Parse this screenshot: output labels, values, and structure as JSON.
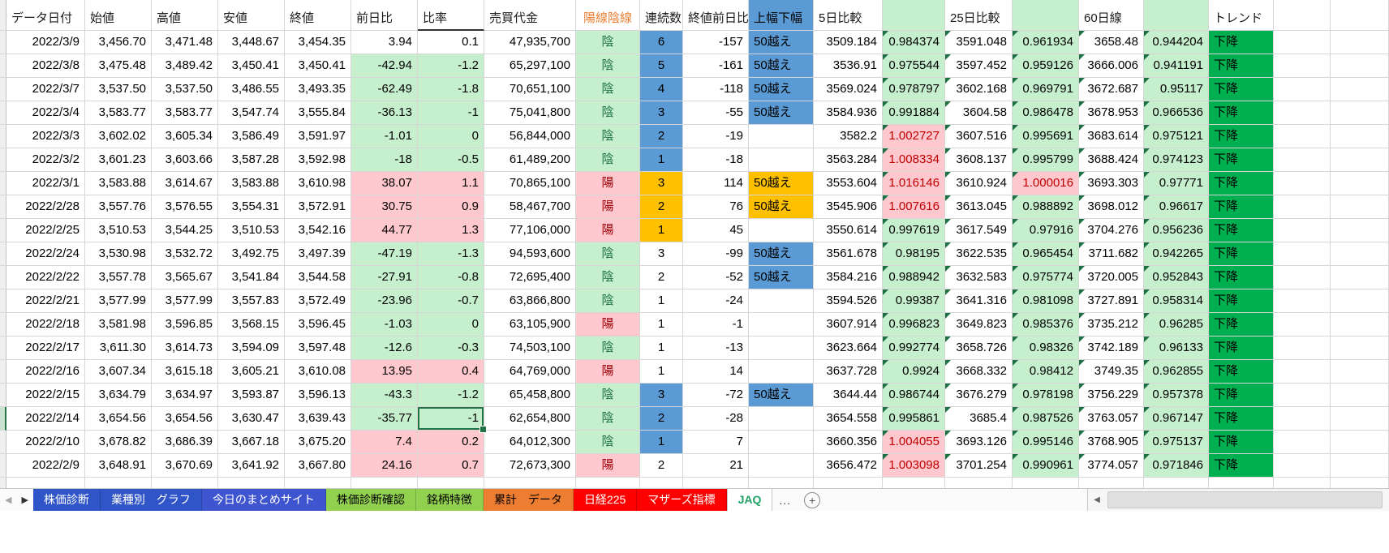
{
  "table": {
    "columns": [
      {
        "key": "gutter",
        "label": ""
      },
      {
        "key": "date",
        "label": "データ日付"
      },
      {
        "key": "open",
        "label": "始値"
      },
      {
        "key": "high",
        "label": "高値"
      },
      {
        "key": "low",
        "label": "安値"
      },
      {
        "key": "close",
        "label": "終値"
      },
      {
        "key": "diff",
        "label": "前日比"
      },
      {
        "key": "ratio",
        "label": "比率",
        "hclass": "hdr-ratio"
      },
      {
        "key": "volume",
        "label": "売買代金"
      },
      {
        "key": "candle",
        "label": "陽線陰線",
        "hclass": "hdr-orange"
      },
      {
        "key": "streak",
        "label": "連続数"
      },
      {
        "key": "closediff",
        "label": "終値前日比"
      },
      {
        "key": "range",
        "label": "上幅下幅",
        "hclass": "hdr-blue"
      },
      {
        "key": "d5",
        "label": "5日比較"
      },
      {
        "key": "d5r",
        "label": "",
        "hclass": "hdr-green",
        "tri": true
      },
      {
        "key": "d25",
        "label": "25日比較",
        "tri": true
      },
      {
        "key": "d25r",
        "label": "",
        "hclass": "hdr-green",
        "tri": true
      },
      {
        "key": "d60",
        "label": "60日線",
        "tri": true
      },
      {
        "key": "d60r",
        "label": "",
        "hclass": "hdr-green",
        "tri": true
      },
      {
        "key": "trend",
        "label": "トレンド"
      },
      {
        "key": "filler1",
        "label": ""
      },
      {
        "key": "filler2",
        "label": ""
      }
    ],
    "selection": {
      "row": 16,
      "col": "ratio"
    },
    "rows": [
      {
        "date": "2022/3/9",
        "open": "3,456.70",
        "high": "3,471.48",
        "low": "3,448.67",
        "close": "3,454.35",
        "diff": "3.94",
        "ratio": "0.1",
        "volume": "47,935,700",
        "candle": "陰",
        "streak": "6",
        "closediff": "-157",
        "range": "50越え",
        "d5": "3509.184",
        "d5r": "0.984374",
        "d25": "3591.048",
        "d25r": "0.961934",
        "d60": "3658.48",
        "d60r": "0.944204",
        "trend": "下降",
        "diff_fill": "none",
        "streak_fill": "blue",
        "range_fill": "blue"
      },
      {
        "date": "2022/3/8",
        "open": "3,475.48",
        "high": "3,489.42",
        "low": "3,450.41",
        "close": "3,450.41",
        "diff": "-42.94",
        "ratio": "-1.2",
        "volume": "65,297,100",
        "candle": "陰",
        "streak": "5",
        "closediff": "-161",
        "range": "50越え",
        "d5": "3536.91",
        "d5r": "0.975544",
        "d25": "3597.452",
        "d25r": "0.959126",
        "d60": "3666.006",
        "d60r": "0.941191",
        "trend": "下降",
        "diff_fill": "green",
        "streak_fill": "blue",
        "range_fill": "blue"
      },
      {
        "date": "2022/3/7",
        "open": "3,537.50",
        "high": "3,537.50",
        "low": "3,486.55",
        "close": "3,493.35",
        "diff": "-62.49",
        "ratio": "-1.8",
        "volume": "70,651,100",
        "candle": "陰",
        "streak": "4",
        "closediff": "-118",
        "range": "50越え",
        "d5": "3569.024",
        "d5r": "0.978797",
        "d25": "3602.168",
        "d25r": "0.969791",
        "d60": "3672.687",
        "d60r": "0.95117",
        "trend": "下降",
        "diff_fill": "green",
        "streak_fill": "blue",
        "range_fill": "blue"
      },
      {
        "date": "2022/3/4",
        "open": "3,583.77",
        "high": "3,583.77",
        "low": "3,547.74",
        "close": "3,555.84",
        "diff": "-36.13",
        "ratio": "-1",
        "volume": "75,041,800",
        "candle": "陰",
        "streak": "3",
        "closediff": "-55",
        "range": "50越え",
        "d5": "3584.936",
        "d5r": "0.991884",
        "d25": "3604.58",
        "d25r": "0.986478",
        "d60": "3678.953",
        "d60r": "0.966536",
        "trend": "下降",
        "diff_fill": "green",
        "streak_fill": "blue",
        "range_fill": "blue"
      },
      {
        "date": "2022/3/3",
        "open": "3,602.02",
        "high": "3,605.34",
        "low": "3,586.49",
        "close": "3,591.97",
        "diff": "-1.01",
        "ratio": "0",
        "volume": "56,844,000",
        "candle": "陰",
        "streak": "2",
        "closediff": "-19",
        "range": "",
        "d5": "3582.2",
        "d5r": "1.002727",
        "d25": "3607.516",
        "d25r": "0.995691",
        "d60": "3683.614",
        "d60r": "0.975121",
        "trend": "下降",
        "diff_fill": "green",
        "streak_fill": "blue",
        "range_fill": "none"
      },
      {
        "date": "2022/3/2",
        "open": "3,601.23",
        "high": "3,603.66",
        "low": "3,587.28",
        "close": "3,592.98",
        "diff": "-18",
        "ratio": "-0.5",
        "volume": "61,489,200",
        "candle": "陰",
        "streak": "1",
        "closediff": "-18",
        "range": "",
        "d5": "3563.284",
        "d5r": "1.008334",
        "d25": "3608.137",
        "d25r": "0.995799",
        "d60": "3688.424",
        "d60r": "0.974123",
        "trend": "下降",
        "diff_fill": "green",
        "streak_fill": "blue",
        "range_fill": "none"
      },
      {
        "date": "2022/3/1",
        "open": "3,583.88",
        "high": "3,614.67",
        "low": "3,583.88",
        "close": "3,610.98",
        "diff": "38.07",
        "ratio": "1.1",
        "volume": "70,865,100",
        "candle": "陽",
        "streak": "3",
        "closediff": "114",
        "range": "50越え",
        "d5": "3553.604",
        "d5r": "1.016146",
        "d25": "3610.924",
        "d25r": "1.000016",
        "d60": "3693.303",
        "d60r": "0.97771",
        "trend": "下降",
        "diff_fill": "pink",
        "streak_fill": "orange",
        "range_fill": "orange"
      },
      {
        "date": "2022/2/28",
        "open": "3,557.76",
        "high": "3,576.55",
        "low": "3,554.31",
        "close": "3,572.91",
        "diff": "30.75",
        "ratio": "0.9",
        "volume": "58,467,700",
        "candle": "陽",
        "streak": "2",
        "closediff": "76",
        "range": "50越え",
        "d5": "3545.906",
        "d5r": "1.007616",
        "d25": "3613.045",
        "d25r": "0.988892",
        "d60": "3698.012",
        "d60r": "0.96617",
        "trend": "下降",
        "diff_fill": "pink",
        "streak_fill": "orange",
        "range_fill": "orange"
      },
      {
        "date": "2022/2/25",
        "open": "3,510.53",
        "high": "3,544.25",
        "low": "3,510.53",
        "close": "3,542.16",
        "diff": "44.77",
        "ratio": "1.3",
        "volume": "77,106,000",
        "candle": "陽",
        "streak": "1",
        "closediff": "45",
        "range": "",
        "d5": "3550.614",
        "d5r": "0.997619",
        "d25": "3617.549",
        "d25r": "0.97916",
        "d60": "3704.276",
        "d60r": "0.956236",
        "trend": "下降",
        "diff_fill": "pink",
        "streak_fill": "orange",
        "range_fill": "none"
      },
      {
        "date": "2022/2/24",
        "open": "3,530.98",
        "high": "3,532.72",
        "low": "3,492.75",
        "close": "3,497.39",
        "diff": "-47.19",
        "ratio": "-1.3",
        "volume": "94,593,600",
        "candle": "陰",
        "streak": "3",
        "closediff": "-99",
        "range": "50越え",
        "d5": "3561.678",
        "d5r": "0.98195",
        "d25": "3622.535",
        "d25r": "0.965454",
        "d60": "3711.682",
        "d60r": "0.942265",
        "trend": "下降",
        "diff_fill": "green",
        "streak_fill": "none",
        "range_fill": "blue"
      },
      {
        "date": "2022/2/22",
        "open": "3,557.78",
        "high": "3,565.67",
        "low": "3,541.84",
        "close": "3,544.58",
        "diff": "-27.91",
        "ratio": "-0.8",
        "volume": "72,695,400",
        "candle": "陰",
        "streak": "2",
        "closediff": "-52",
        "range": "50越え",
        "d5": "3584.216",
        "d5r": "0.988942",
        "d25": "3632.583",
        "d25r": "0.975774",
        "d60": "3720.005",
        "d60r": "0.952843",
        "trend": "下降",
        "diff_fill": "green",
        "streak_fill": "none",
        "range_fill": "blue"
      },
      {
        "date": "2022/2/21",
        "open": "3,577.99",
        "high": "3,577.99",
        "low": "3,557.83",
        "close": "3,572.49",
        "diff": "-23.96",
        "ratio": "-0.7",
        "volume": "63,866,800",
        "candle": "陰",
        "streak": "1",
        "closediff": "-24",
        "range": "",
        "d5": "3594.526",
        "d5r": "0.99387",
        "d25": "3641.316",
        "d25r": "0.981098",
        "d60": "3727.891",
        "d60r": "0.958314",
        "trend": "下降",
        "diff_fill": "green",
        "streak_fill": "none",
        "range_fill": "none"
      },
      {
        "date": "2022/2/18",
        "open": "3,581.98",
        "high": "3,596.85",
        "low": "3,568.15",
        "close": "3,596.45",
        "diff": "-1.03",
        "ratio": "0",
        "volume": "63,105,900",
        "candle": "陽",
        "streak": "1",
        "closediff": "-1",
        "range": "",
        "d5": "3607.914",
        "d5r": "0.996823",
        "d25": "3649.823",
        "d25r": "0.985376",
        "d60": "3735.212",
        "d60r": "0.96285",
        "trend": "下降",
        "diff_fill": "green",
        "streak_fill": "none",
        "range_fill": "none"
      },
      {
        "date": "2022/2/17",
        "open": "3,611.30",
        "high": "3,614.73",
        "low": "3,594.09",
        "close": "3,597.48",
        "diff": "-12.6",
        "ratio": "-0.3",
        "volume": "74,503,100",
        "candle": "陰",
        "streak": "1",
        "closediff": "-13",
        "range": "",
        "d5": "3623.664",
        "d5r": "0.992774",
        "d25": "3658.726",
        "d25r": "0.98326",
        "d60": "3742.189",
        "d60r": "0.96133",
        "trend": "下降",
        "diff_fill": "green",
        "streak_fill": "none",
        "range_fill": "none"
      },
      {
        "date": "2022/2/16",
        "open": "3,607.34",
        "high": "3,615.18",
        "low": "3,605.21",
        "close": "3,610.08",
        "diff": "13.95",
        "ratio": "0.4",
        "volume": "64,769,000",
        "candle": "陽",
        "streak": "1",
        "closediff": "14",
        "range": "",
        "d5": "3637.728",
        "d5r": "0.9924",
        "d25": "3668.332",
        "d25r": "0.98412",
        "d60": "3749.35",
        "d60r": "0.962855",
        "trend": "下降",
        "diff_fill": "pink",
        "streak_fill": "none",
        "range_fill": "none"
      },
      {
        "date": "2022/2/15",
        "open": "3,634.79",
        "high": "3,634.97",
        "low": "3,593.87",
        "close": "3,596.13",
        "diff": "-43.3",
        "ratio": "-1.2",
        "volume": "65,458,800",
        "candle": "陰",
        "streak": "3",
        "closediff": "-72",
        "range": "50越え",
        "d5": "3644.44",
        "d5r": "0.986744",
        "d25": "3676.279",
        "d25r": "0.978198",
        "d60": "3756.229",
        "d60r": "0.957378",
        "trend": "下降",
        "diff_fill": "green",
        "streak_fill": "blue",
        "range_fill": "blue"
      },
      {
        "date": "2022/2/14",
        "open": "3,654.56",
        "high": "3,654.56",
        "low": "3,630.47",
        "close": "3,639.43",
        "diff": "-35.77",
        "ratio": "-1",
        "volume": "62,654,800",
        "candle": "陰",
        "streak": "2",
        "closediff": "-28",
        "range": "",
        "d5": "3654.558",
        "d5r": "0.995861",
        "d25": "3685.4",
        "d25r": "0.987526",
        "d60": "3763.057",
        "d60r": "0.967147",
        "trend": "下降",
        "diff_fill": "green",
        "streak_fill": "blue",
        "range_fill": "none"
      },
      {
        "date": "2022/2/10",
        "open": "3,678.82",
        "high": "3,686.39",
        "low": "3,667.18",
        "close": "3,675.20",
        "diff": "7.4",
        "ratio": "0.2",
        "volume": "64,012,300",
        "candle": "陰",
        "streak": "1",
        "closediff": "7",
        "range": "",
        "d5": "3660.356",
        "d5r": "1.004055",
        "d25": "3693.126",
        "d25r": "0.995146",
        "d60": "3768.905",
        "d60r": "0.975137",
        "trend": "下降",
        "diff_fill": "pink",
        "streak_fill": "blue",
        "range_fill": "none"
      },
      {
        "date": "2022/2/9",
        "open": "3,648.91",
        "high": "3,670.69",
        "low": "3,641.92",
        "close": "3,667.80",
        "diff": "24.16",
        "ratio": "0.7",
        "volume": "72,673,300",
        "candle": "陽",
        "streak": "2",
        "closediff": "21",
        "range": "",
        "d5": "3656.472",
        "d5r": "1.003098",
        "d25": "3701.254",
        "d25r": "0.990961",
        "d60": "3774.057",
        "d60r": "0.971846",
        "trend": "下降",
        "diff_fill": "pink",
        "streak_fill": "none",
        "range_fill": "none"
      }
    ]
  },
  "tabs": {
    "nav_left": "◀",
    "nav_right": "▶",
    "more_label": "...",
    "add_label": "+",
    "items": [
      {
        "id": "kabuka-shindan",
        "label": "株価診断",
        "bg": "#2f55c8",
        "fg": "#ffffff"
      },
      {
        "id": "gyoshubetsu-graph",
        "label": "業種別　グラフ",
        "bg": "#2f55c8",
        "fg": "#ffffff"
      },
      {
        "id": "kyou-no-matome-site",
        "label": "今日のまとめサイト",
        "bg": "#3f55d0",
        "fg": "#ffffff"
      },
      {
        "id": "kabuka-shindan-kakunin",
        "label": "株価診断確認",
        "bg": "#92d050",
        "fg": "#000000"
      },
      {
        "id": "meigara-tokucho",
        "label": "銘柄特徴",
        "bg": "#92d050",
        "fg": "#000000"
      },
      {
        "id": "ruikei-data",
        "label": "累計　データ",
        "bg": "#ed7d31",
        "fg": "#000000"
      },
      {
        "id": "nikkei225",
        "label": "日経225",
        "bg": "#ff0000",
        "fg": "#ffffff"
      },
      {
        "id": "mothers-shihyo",
        "label": "マザーズ指標",
        "bg": "#ff0000",
        "fg": "#ffffff"
      },
      {
        "id": "jaq",
        "label": "JAQ",
        "bg": "#ffffff",
        "fg": "#21a366",
        "active": true
      }
    ]
  },
  "scrollbar": {
    "left_arrow": "◀"
  }
}
